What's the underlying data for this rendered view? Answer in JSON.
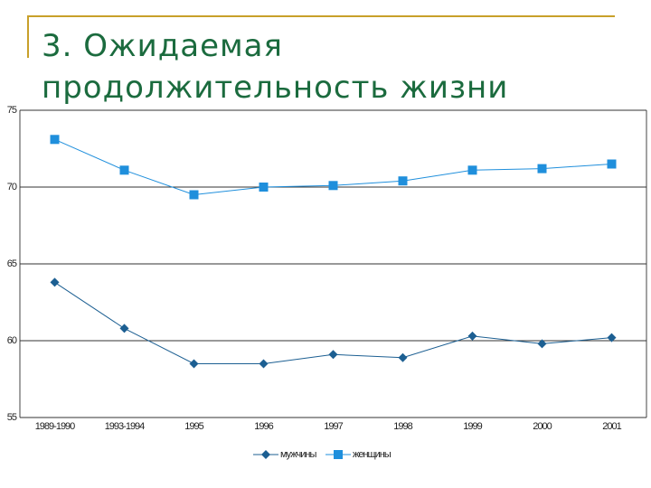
{
  "chart_data": {
    "type": "line",
    "title": "3. Ожидаемая продолжительность жизни",
    "categories": [
      "1989-1990",
      "1993-1994",
      "1995",
      "1996",
      "1997",
      "1998",
      "1999",
      "2000",
      "2001"
    ],
    "series": [
      {
        "name": "мужчины",
        "color": "#1c5f92",
        "marker": "diamond",
        "values": [
          63.8,
          60.8,
          58.5,
          58.5,
          59.1,
          58.9,
          60.3,
          59.8,
          60.2
        ]
      },
      {
        "name": "женщины",
        "color": "#1f8fdc",
        "marker": "square",
        "values": [
          73.1,
          71.1,
          69.5,
          70.0,
          70.1,
          70.4,
          71.1,
          71.2,
          71.5
        ]
      }
    ],
    "ylim": [
      55,
      75
    ],
    "yticks": [
      55,
      60,
      65,
      70,
      75
    ],
    "grid": true,
    "legend": "bottom"
  }
}
